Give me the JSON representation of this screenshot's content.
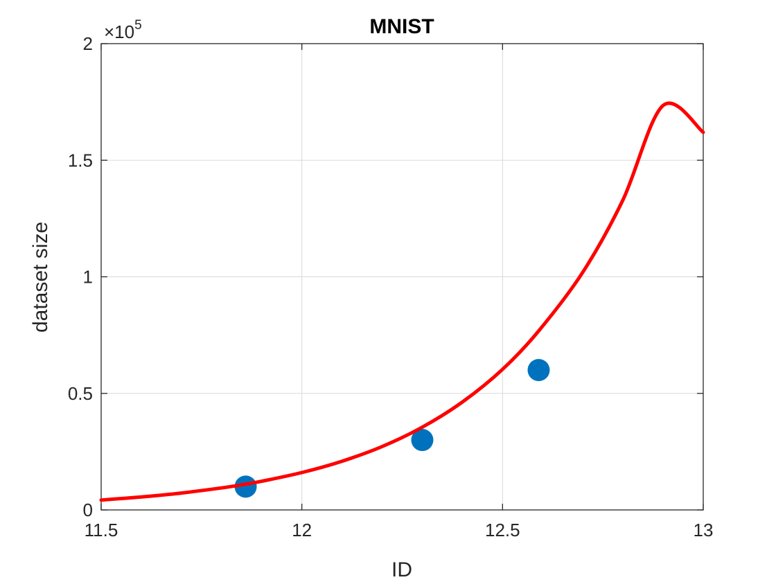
{
  "chart_data": {
    "type": "scatter",
    "title": "MNIST",
    "xlabel": "ID",
    "ylabel": "dataset size",
    "xlim": [
      11.5,
      13
    ],
    "ylim": [
      0,
      200000
    ],
    "x_ticks": [
      11.5,
      12,
      12.5,
      13
    ],
    "x_tick_labels": [
      "11.5",
      "12",
      "12.5",
      "13"
    ],
    "y_ticks": [
      0,
      50000,
      100000,
      150000,
      200000
    ],
    "y_tick_labels": [
      "0",
      "0.5",
      "1",
      "1.5",
      "2"
    ],
    "y_exponent": {
      "base": "×10",
      "power": "5"
    },
    "grid": true,
    "series": [
      {
        "type": "scatter",
        "color": "#0072BD",
        "x": [
          11.86,
          12.3,
          12.59
        ],
        "y": [
          10000,
          30000,
          60000
        ]
      },
      {
        "type": "line",
        "color": "#FF0000",
        "x": [
          11.5,
          11.6,
          11.7,
          11.8,
          11.86,
          11.9,
          12.0,
          12.1,
          12.2,
          12.3,
          12.4,
          12.5,
          12.59,
          12.7,
          12.8,
          12.9,
          13.0
        ],
        "y": [
          4250,
          5550,
          7250,
          9450,
          11050,
          12300,
          16050,
          20900,
          27200,
          35500,
          46300,
          60300,
          76800,
          102000,
          133000,
          173500,
          162000
        ]
      }
    ]
  }
}
